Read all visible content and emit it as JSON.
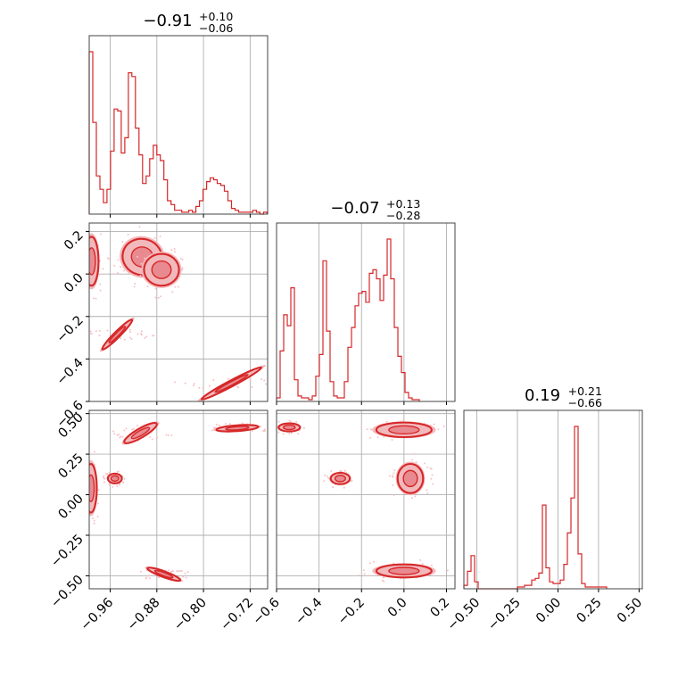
{
  "chart_data": {
    "type": "corner",
    "params": [
      {
        "title_main": "−0.91",
        "title_plus": "+0.10",
        "title_minus": "−0.06",
        "range": [
          -0.996,
          -0.69
        ],
        "ticks": [
          -0.96,
          -0.88,
          -0.8,
          -0.72
        ],
        "tick_labels": [
          "−0.96",
          "−0.88",
          "−0.80",
          "−0.72"
        ],
        "hist": {
          "start": -0.996,
          "bin_width": 0.0061,
          "counts": [
            0.85,
            0.48,
            0.2,
            0.13,
            0.06,
            0.13,
            0.33,
            0.55,
            0.54,
            0.32,
            0.4,
            0.74,
            0.72,
            0.45,
            0.31,
            0.16,
            0.2,
            0.29,
            0.36,
            0.31,
            0.28,
            0.18,
            0.07,
            0.05,
            0.02,
            0.02,
            0.01,
            0.01,
            0.02,
            0.01,
            0.04,
            0.07,
            0.13,
            0.17,
            0.19,
            0.18,
            0.16,
            0.15,
            0.12,
            0.07,
            0.03,
            0.02,
            0.01,
            0.01,
            0.01,
            0.01,
            0.02,
            0.01,
            0.0,
            0.01
          ]
        }
      },
      {
        "title_main": "−0.07",
        "title_plus": "+0.13",
        "title_minus": "−0.28",
        "range": [
          -0.6,
          0.24
        ],
        "ticks": [
          -0.6,
          -0.4,
          -0.2,
          0.0,
          0.2
        ],
        "tick_labels": [
          "−0.6",
          "−0.4",
          "−0.2",
          "0.0",
          "0.2"
        ],
        "hist": {
          "start": -0.6,
          "bin_width": 0.0168,
          "counts": [
            0.02,
            0.28,
            0.48,
            0.42,
            0.63,
            0.12,
            0.03,
            0.02,
            0.02,
            0.01,
            0.03,
            0.14,
            0.26,
            0.78,
            0.39,
            0.11,
            0.03,
            0.02,
            0.02,
            0.11,
            0.3,
            0.41,
            0.53,
            0.6,
            0.61,
            0.55,
            0.71,
            0.73,
            0.68,
            0.56,
            0.7,
            0.9,
            0.68,
            0.41,
            0.25,
            0.16,
            0.05,
            0.02,
            0.01,
            0.01
          ]
        }
      },
      {
        "title_main": "0.19",
        "title_plus": "+0.21",
        "title_minus": "−0.66",
        "range": [
          -0.58,
          0.52
        ],
        "ticks": [
          -0.5,
          -0.25,
          0.0,
          0.25,
          0.5
        ],
        "tick_labels": [
          "−0.50",
          "−0.25",
          "0.00",
          "0.25",
          "0.50"
        ],
        "hist": {
          "start": -0.58,
          "bin_width": 0.022,
          "counts": [
            0.02,
            0.1,
            0.19,
            0.04,
            0.0,
            0.0,
            0.0,
            0.0,
            0.0,
            0.0,
            0.0,
            0.0,
            0.0,
            0.0,
            0.0,
            0.01,
            0.01,
            0.02,
            0.02,
            0.05,
            0.06,
            0.09,
            0.48,
            0.12,
            0.04,
            0.03,
            0.03,
            0.05,
            0.14,
            0.32,
            0.52,
            0.93,
            0.2,
            0.03,
            0.01,
            0.01,
            0.01,
            0.01,
            0.01,
            0.01
          ]
        }
      }
    ],
    "pairs": [
      {
        "row": 1,
        "col": 0,
        "clusters": [
          {
            "cx": -0.992,
            "cy": 0.06,
            "rx": 0.012,
            "ry": 0.115,
            "ang": 0
          },
          {
            "cx": -0.948,
            "cy": -0.285,
            "rx": 0.036,
            "ry": 0.014,
            "ang": -45
          },
          {
            "cx": -0.905,
            "cy": 0.08,
            "rx": 0.034,
            "ry": 0.085,
            "ang": 15
          },
          {
            "cx": -0.872,
            "cy": 0.02,
            "rx": 0.03,
            "ry": 0.075,
            "ang": 0
          },
          {
            "cx": -0.752,
            "cy": -0.515,
            "rx": 0.058,
            "ry": 0.014,
            "ang": -28
          }
        ]
      },
      {
        "row": 2,
        "col": 0,
        "clusters": [
          {
            "cx": -0.993,
            "cy": 0.04,
            "rx": 0.01,
            "ry": 0.15,
            "ang": 0
          },
          {
            "cx": -0.952,
            "cy": 0.1,
            "rx": 0.012,
            "ry": 0.03,
            "ang": 0
          },
          {
            "cx": -0.908,
            "cy": 0.38,
            "rx": 0.032,
            "ry": 0.028,
            "ang": -30
          },
          {
            "cx": -0.868,
            "cy": -0.49,
            "rx": 0.03,
            "ry": 0.018,
            "ang": 20
          },
          {
            "cx": -0.742,
            "cy": 0.41,
            "rx": 0.036,
            "ry": 0.018,
            "ang": -4
          }
        ]
      },
      {
        "row": 2,
        "col": 1,
        "clusters": [
          {
            "cx": -0.54,
            "cy": 0.415,
            "rx": 0.05,
            "ry": 0.025,
            "ang": 0
          },
          {
            "cx": -0.3,
            "cy": 0.1,
            "rx": 0.045,
            "ry": 0.035,
            "ang": 0
          },
          {
            "cx": 0.0,
            "cy": 0.4,
            "rx": 0.13,
            "ry": 0.045,
            "ang": 0
          },
          {
            "cx": 0.03,
            "cy": 0.1,
            "rx": 0.06,
            "ry": 0.09,
            "ang": 0
          },
          {
            "cx": 0.0,
            "cy": -0.47,
            "rx": 0.13,
            "ry": 0.04,
            "ang": 0
          }
        ]
      }
    ]
  }
}
